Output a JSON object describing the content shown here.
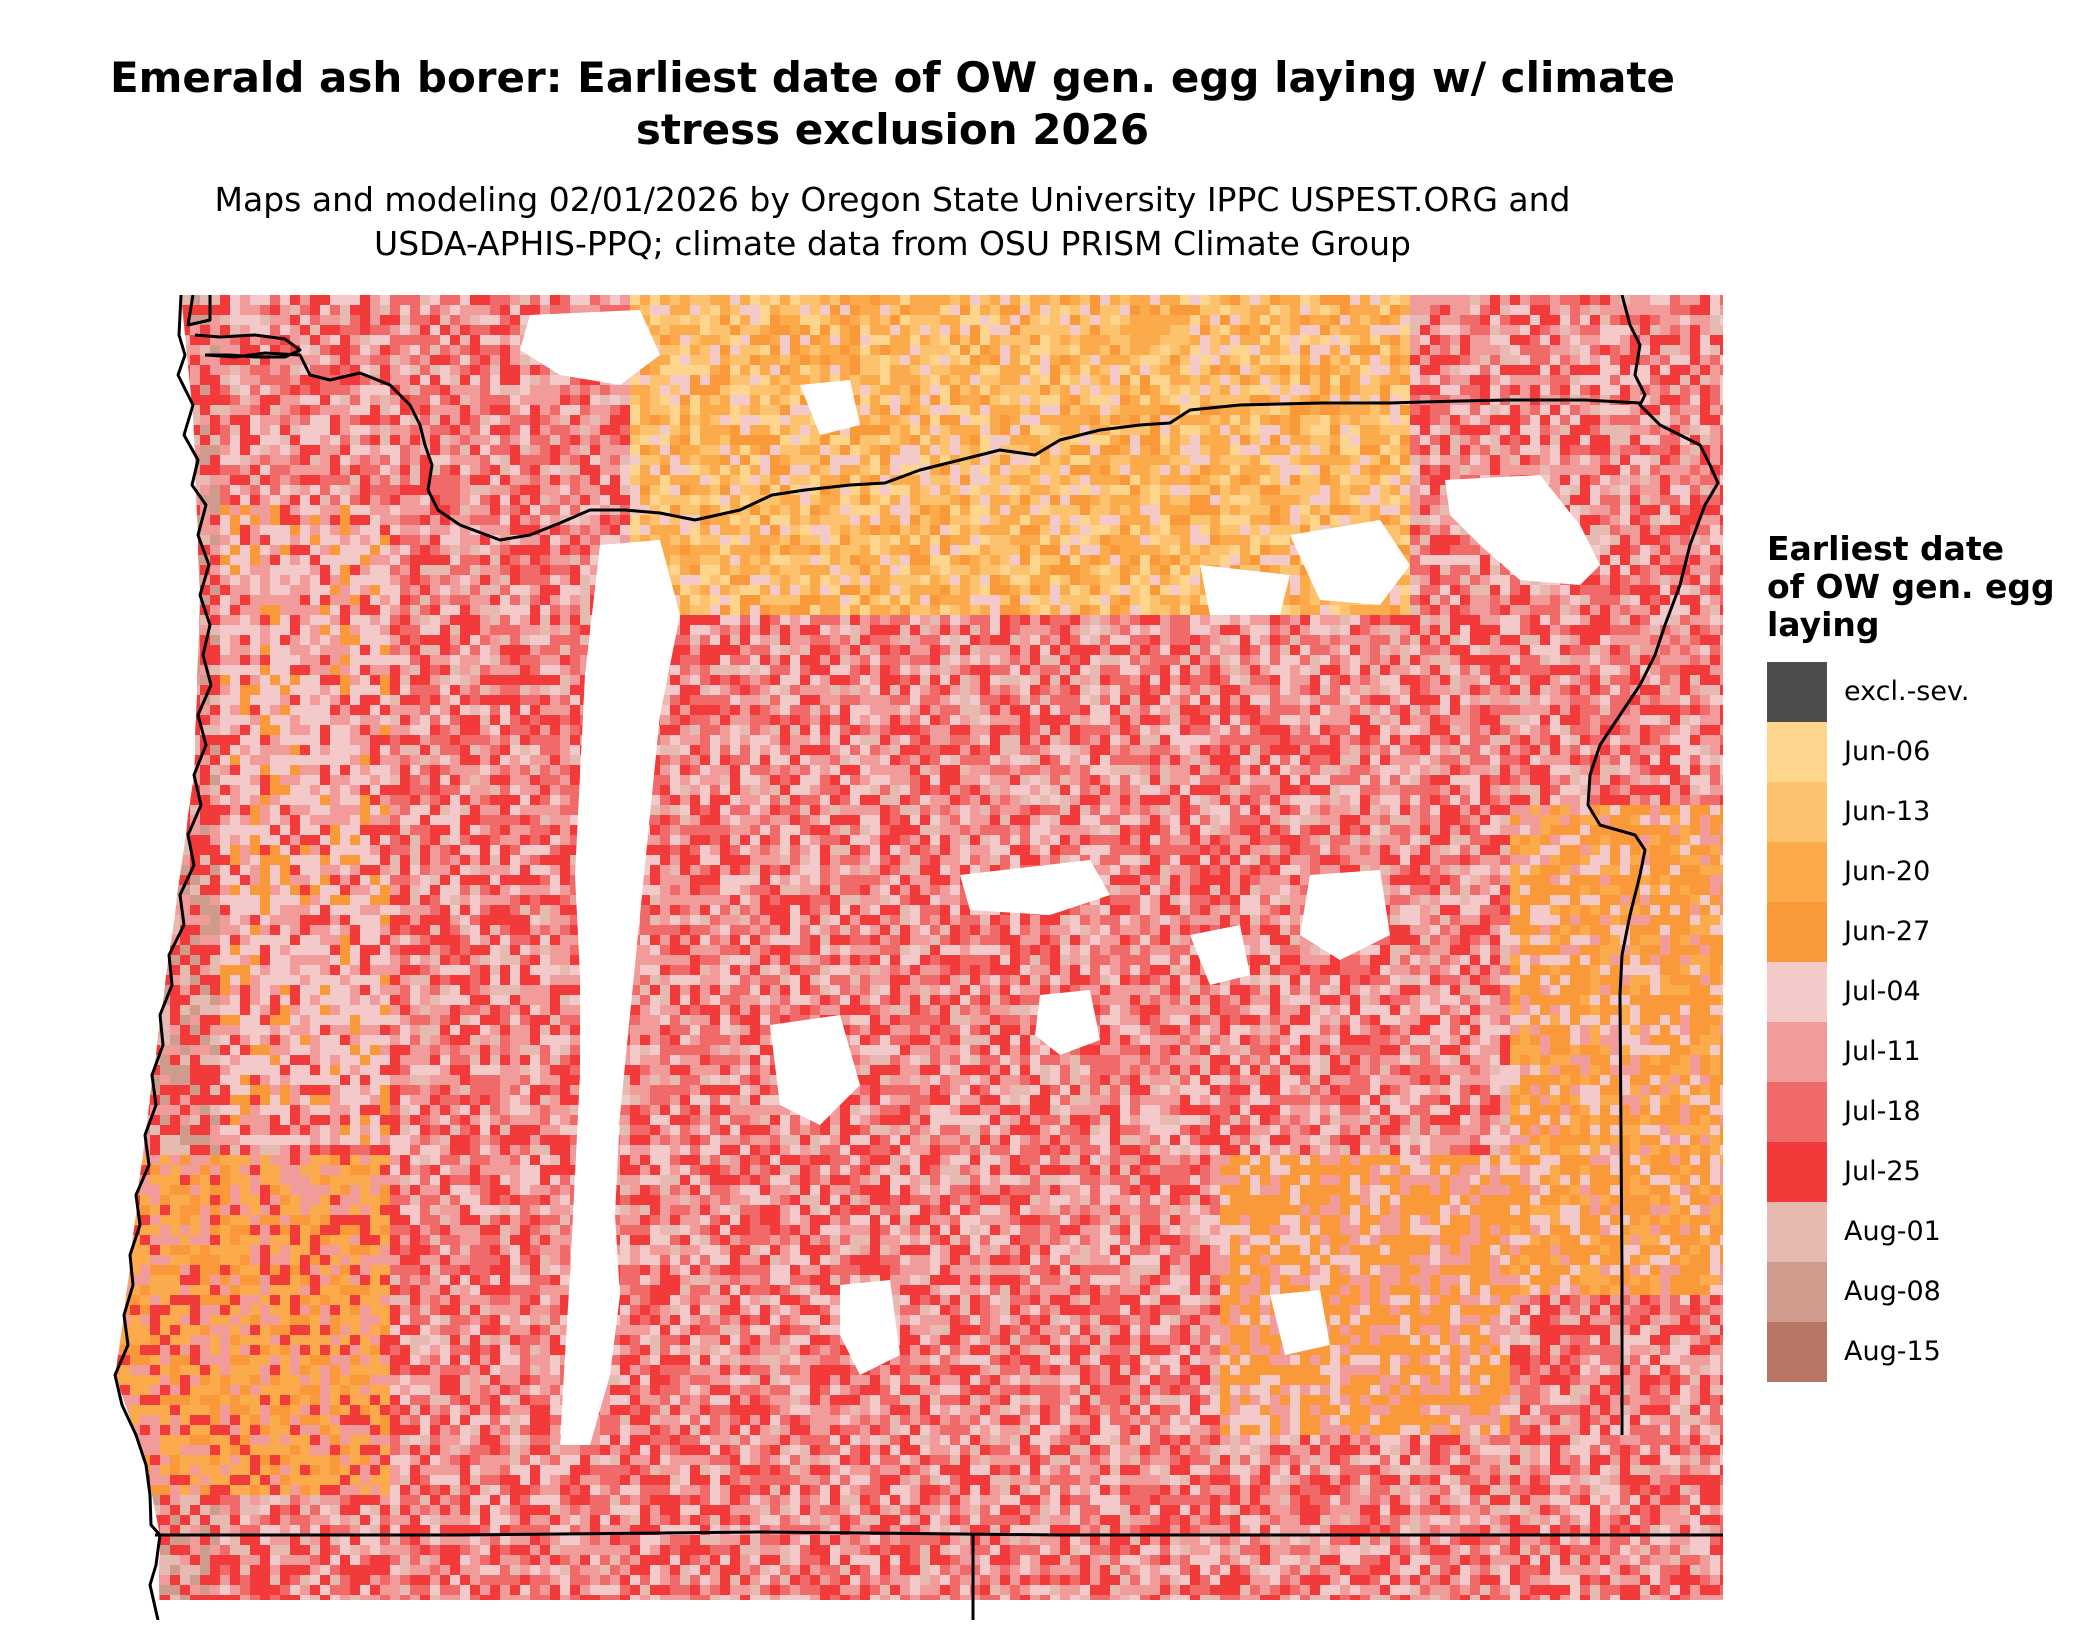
{
  "title_line1": "Emerald ash borer: Earliest date of OW gen. egg laying w/ climate",
  "title_line2": "stress exclusion 2026",
  "subtitle_line1": "Maps and modeling 02/01/2026 by Oregon State University IPPC USPEST.ORG and",
  "subtitle_line2": "USDA-APHIS-PPQ; climate data from OSU PRISM Climate Group",
  "legend": {
    "title_lines": [
      "Earliest date",
      "of OW gen. egg",
      "laying"
    ],
    "items": [
      {
        "label": "excl.-sev.",
        "color": "#4d4d4d"
      },
      {
        "label": "Jun-06",
        "color": "#fdd58c"
      },
      {
        "label": "Jun-13",
        "color": "#fcc26e"
      },
      {
        "label": "Jun-20",
        "color": "#fbaa4c"
      },
      {
        "label": "Jun-27",
        "color": "#f9993a"
      },
      {
        "label": "Jul-04",
        "color": "#f4c9c9"
      },
      {
        "label": "Jul-11",
        "color": "#f29b9b"
      },
      {
        "label": "Jul-18",
        "color": "#f06a6a"
      },
      {
        "label": "Jul-25",
        "color": "#f23a3a"
      },
      {
        "label": "Aug-01",
        "color": "#e6b9b1"
      },
      {
        "label": "Aug-08",
        "color": "#cf9b8d"
      },
      {
        "label": "Aug-15",
        "color": "#b87566"
      }
    ]
  }
}
